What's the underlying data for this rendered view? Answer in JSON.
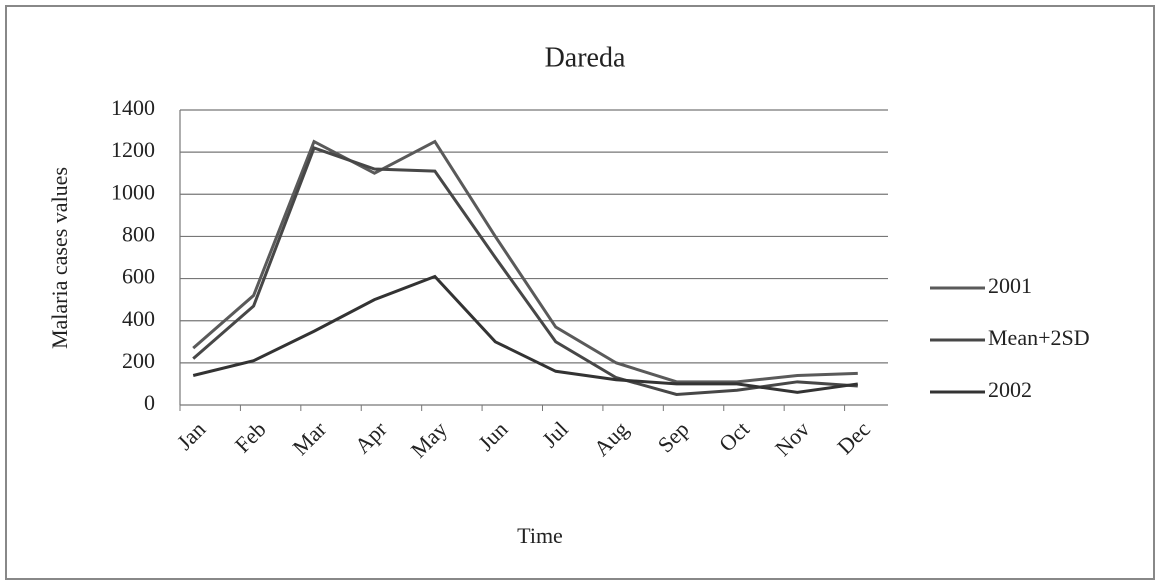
{
  "chart_data": {
    "type": "line",
    "title": "Dareda",
    "x_label": "Time",
    "y_label": "Malaria cases values",
    "categories": [
      "Jan",
      "Feb",
      "Mar",
      "Apr",
      "May",
      "Jun",
      "Jul",
      "Aug",
      "Sep",
      "Oct",
      "Nov",
      "Dec"
    ],
    "series": [
      {
        "name": "2001",
        "color": "#5a5a5a",
        "values": [
          270,
          520,
          1250,
          1100,
          1250,
          800,
          370,
          200,
          110,
          110,
          140,
          150
        ]
      },
      {
        "name": "Mean+2SD",
        "color": "#474747",
        "values": [
          220,
          470,
          1220,
          1120,
          1110,
          700,
          300,
          130,
          50,
          70,
          110,
          90
        ]
      },
      {
        "name": "2002",
        "color": "#333333",
        "values": [
          140,
          210,
          350,
          500,
          610,
          300,
          160,
          120,
          100,
          100,
          60,
          100
        ]
      }
    ],
    "ylim": [
      0,
      1400
    ],
    "yticks": [
      0,
      200,
      400,
      600,
      800,
      1000,
      1200,
      1400
    ],
    "grid": true,
    "legend": "right"
  }
}
